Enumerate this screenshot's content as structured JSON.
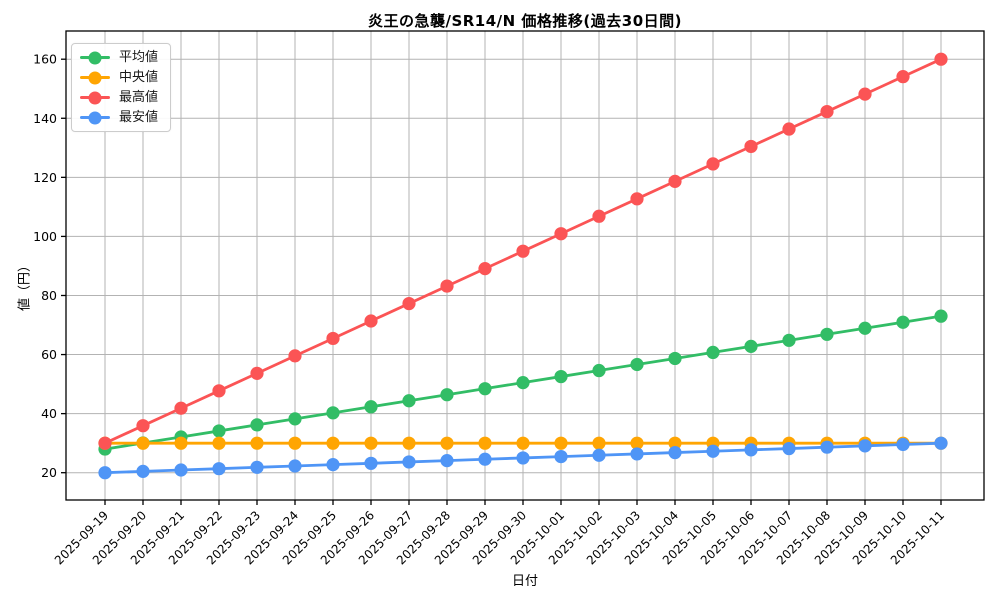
{
  "title": "炎王の急襲/SR14/N 価格推移(過去30日間)",
  "chart_data": {
    "type": "line",
    "title": "炎王の急襲/SR14/N 価格推移(過去30日間)",
    "xlabel": "日付",
    "ylabel": "値（円）",
    "grid": true,
    "legend_position": "upper left",
    "yticks": [
      20,
      40,
      60,
      80,
      100,
      120,
      140,
      160
    ],
    "ylim": [
      10.5,
      169.5
    ],
    "x": [
      "2025-09-19",
      "2025-09-20",
      "2025-09-21",
      "2025-09-22",
      "2025-09-23",
      "2025-09-24",
      "2025-09-25",
      "2025-09-26",
      "2025-09-27",
      "2025-09-28",
      "2025-09-29",
      "2025-09-30",
      "2025-10-01",
      "2025-10-02",
      "2025-10-03",
      "2025-10-04",
      "2025-10-05",
      "2025-10-06",
      "2025-10-07",
      "2025-10-08",
      "2025-10-09",
      "2025-10-10",
      "2025-10-11"
    ],
    "series": [
      {
        "name": "平均値",
        "color": "#32bd66",
        "values": [
          28.0,
          30.05,
          32.09,
          34.14,
          36.18,
          38.23,
          40.27,
          42.32,
          44.36,
          46.41,
          48.45,
          50.5,
          52.55,
          54.59,
          56.64,
          58.68,
          60.73,
          62.77,
          64.82,
          66.86,
          68.91,
          70.95,
          73.0
        ]
      },
      {
        "name": "中央値",
        "color": "#ffa502",
        "values": [
          30,
          30,
          30,
          30,
          30,
          30,
          30,
          30,
          30,
          30,
          30,
          30,
          30,
          30,
          30,
          30,
          30,
          30,
          30,
          30,
          30,
          30,
          30
        ]
      },
      {
        "name": "最高値",
        "color": "#fb5455",
        "values": [
          30.0,
          35.91,
          41.82,
          47.73,
          53.64,
          59.55,
          65.45,
          71.36,
          77.27,
          83.18,
          89.09,
          95.0,
          100.91,
          106.82,
          112.73,
          118.64,
          124.55,
          130.45,
          136.36,
          142.27,
          148.18,
          154.09,
          160.0
        ]
      },
      {
        "name": "最安値",
        "color": "#4f95f6",
        "values": [
          20.0,
          20.45,
          20.91,
          21.36,
          21.82,
          22.27,
          22.73,
          23.18,
          23.64,
          24.09,
          24.55,
          25.0,
          25.45,
          25.91,
          26.36,
          26.82,
          27.27,
          27.73,
          28.18,
          28.64,
          29.09,
          29.55,
          30.0
        ]
      }
    ],
    "style": {
      "grid_color": "#b3b3b3",
      "spine_color": "#000000",
      "tick_label_color": "#000000",
      "background": "#ffffff"
    }
  }
}
